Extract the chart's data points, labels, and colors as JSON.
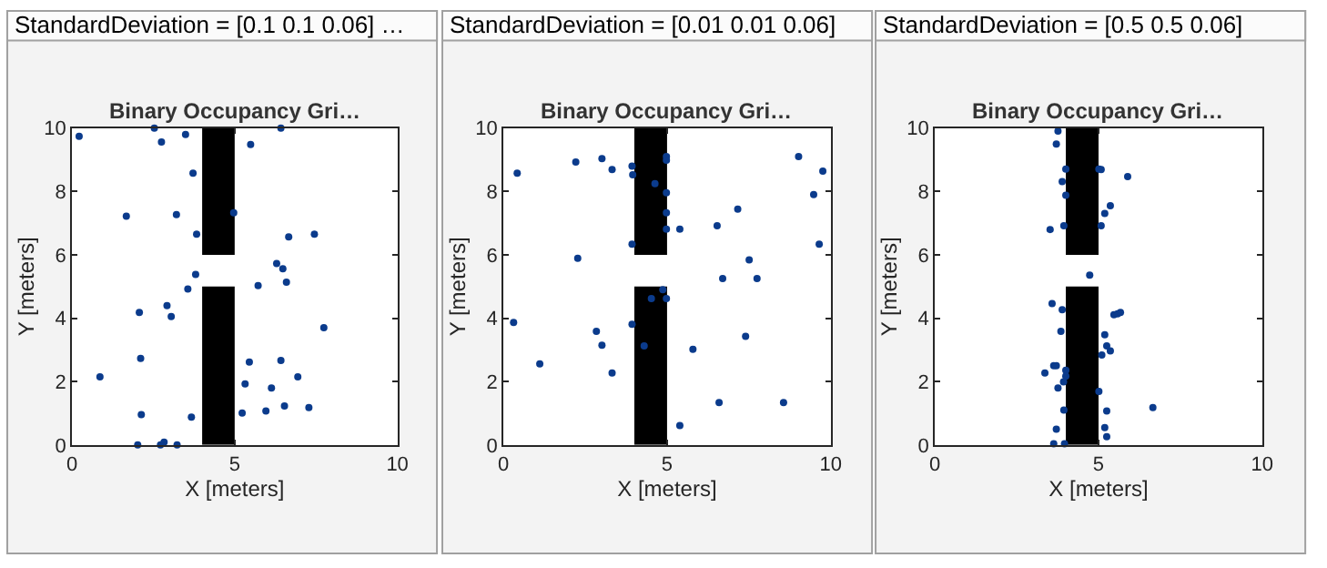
{
  "chart_data": [
    {
      "type": "scatter",
      "title": "StandardDeviation = [0.1 0.1 0.06] …",
      "subtitle": "Binary Occupancy Gri…",
      "xlabel": "X [meters]",
      "ylabel": "Y [meters]",
      "xlim": [
        0,
        10
      ],
      "ylim": [
        0,
        10
      ],
      "xticks": [
        0,
        5,
        10
      ],
      "yticks": [
        0,
        2,
        4,
        6,
        8,
        10
      ],
      "marker": "circle",
      "series": [
        {
          "type": "bar",
          "color": "#000000",
          "x": [
            4.5,
            4.5
          ],
          "base": [
            0,
            6
          ],
          "values": [
            5,
            4
          ]
        },
        {
          "color": "#0b3b8c",
          "x": [
            0.22,
            2.53,
            3.49,
            6.42,
            2.75,
            5.49,
            3.72,
            1.67,
            3.21,
            4.97,
            3.83,
            6.66,
            7.45,
            6.29,
            6.48,
            6.59,
            3.8,
            3.56,
            5.72,
            2.07,
            2.92,
            3.05,
            7.74,
            0.86,
            2.11,
            5.45,
            6.42,
            6.94,
            5.32,
            6.13,
            2.13,
            3.67,
            5.23,
            5.96,
            6.53,
            7.28,
            2.02,
            2.72,
            2.83,
            3.23
          ],
          "values": [
            9.74,
            10.0,
            9.8,
            10.0,
            9.56,
            9.48,
            8.58,
            7.22,
            7.27,
            7.33,
            6.65,
            6.57,
            6.65,
            5.73,
            5.56,
            5.14,
            5.38,
            4.92,
            5.03,
            4.18,
            4.4,
            4.05,
            3.7,
            2.15,
            2.73,
            2.62,
            2.67,
            2.15,
            1.93,
            1.8,
            0.96,
            0.88,
            1.01,
            1.07,
            1.23,
            1.18,
            0.0,
            0.0,
            0.09,
            0.0
          ]
        }
      ]
    },
    {
      "type": "scatter",
      "title": "StandardDeviation = [0.01 0.01 0.06]",
      "subtitle": "Binary Occupancy Gri…",
      "xlabel": "X [meters]",
      "ylabel": "Y [meters]",
      "xlim": [
        0,
        10
      ],
      "ylim": [
        0,
        10
      ],
      "xticks": [
        0,
        5,
        10
      ],
      "yticks": [
        0,
        2,
        4,
        6,
        8,
        10
      ],
      "marker": "circle",
      "series": [
        {
          "type": "bar",
          "color": "#000000",
          "x": [
            4.5,
            4.5
          ],
          "base": [
            0,
            6
          ],
          "values": [
            5,
            4
          ]
        },
        {
          "color": "#0b3b8c",
          "x": [
            0.42,
            2.21,
            3.01,
            3.32,
            3.93,
            3.95,
            4.98,
            4.98,
            4.63,
            4.98,
            4.98,
            4.98,
            5.39,
            3.93,
            9.02,
            9.76,
            9.48,
            9.65,
            7.16,
            6.53,
            7.51,
            6.7,
            7.75,
            2.27,
            0.31,
            2.84,
            3.01,
            3.32,
            1.11,
            3.93,
            4.3,
            4.52,
            4.87,
            4.98,
            5.79,
            7.4,
            6.59,
            8.56,
            5.39
          ],
          "values": [
            8.58,
            8.93,
            9.04,
            8.69,
            8.8,
            8.53,
            9.1,
            8.99,
            8.25,
            7.96,
            7.33,
            6.81,
            6.81,
            6.34,
            9.1,
            8.64,
            7.9,
            6.34,
            7.44,
            6.92,
            5.84,
            5.25,
            5.25,
            5.89,
            3.87,
            3.59,
            3.15,
            2.27,
            2.56,
            3.81,
            3.13,
            4.62,
            4.9,
            4.62,
            3.02,
            3.43,
            1.34,
            1.34,
            0.61
          ]
        }
      ]
    },
    {
      "type": "scatter",
      "title": "StandardDeviation = [0.5 0.5 0.06]",
      "subtitle": "Binary Occupancy Gri…",
      "xlabel": "X [meters]",
      "ylabel": "Y [meters]",
      "xlim": [
        0,
        10
      ],
      "ylim": [
        0,
        10
      ],
      "xticks": [
        0,
        5,
        10
      ],
      "yticks": [
        0,
        2,
        4,
        6,
        8,
        10
      ],
      "marker": "circle",
      "series": [
        {
          "type": "bar",
          "color": "#000000",
          "x": [
            4.5,
            4.5
          ],
          "base": [
            0,
            6
          ],
          "values": [
            5,
            4
          ]
        },
        {
          "color": "#0b3b8c",
          "x": [
            3.76,
            3.71,
            4.0,
            5.01,
            5.08,
            5.89,
            3.89,
            4.0,
            5.36,
            5.19,
            3.52,
            3.94,
            5.08,
            4.73,
            3.58,
            3.89,
            5.47,
            5.58,
            5.67,
            3.85,
            5.19,
            5.25,
            5.36,
            5.1,
            3.63,
            3.71,
            3.36,
            4.0,
            4.0,
            3.93,
            3.76,
            5.01,
            3.94,
            5.25,
            6.66,
            3.71,
            5.19,
            5.25,
            3.63,
            3.96
          ],
          "values": [
            9.91,
            9.5,
            8.71,
            8.71,
            8.69,
            8.47,
            8.31,
            7.88,
            7.55,
            7.31,
            6.8,
            6.92,
            6.92,
            5.36,
            4.46,
            4.27,
            4.11,
            4.14,
            4.18,
            3.59,
            3.48,
            3.13,
            2.97,
            2.84,
            2.5,
            2.5,
            2.27,
            2.36,
            2.17,
            1.99,
            1.8,
            1.69,
            1.1,
            1.07,
            1.18,
            0.5,
            0.55,
            0.26,
            0.04,
            0.04
          ]
        }
      ]
    }
  ]
}
